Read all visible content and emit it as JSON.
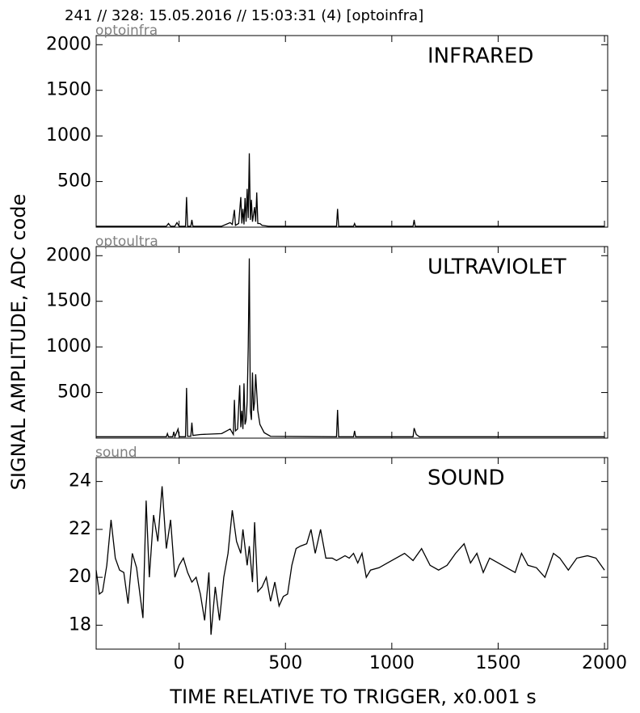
{
  "header": "241 // 328:   15.05.2016 // 15:03:31 (4)  [optoinfra]",
  "y_label": "SIGNAL AMPLITUDE,  ADC code",
  "x_label": "TIME RELATIVE TO TRIGGER,   x0.001 s",
  "chart_data": [
    {
      "type": "line",
      "source": "optoinfra",
      "title": "INFRARED",
      "color": "#000000",
      "xlim": [
        -390,
        2015
      ],
      "ylim": [
        0,
        2100
      ],
      "yticks": [
        500,
        1000,
        1500,
        2000
      ],
      "x": [
        -390,
        -60,
        -50,
        -40,
        -20,
        -10,
        0,
        30,
        35,
        40,
        55,
        60,
        65,
        200,
        240,
        250,
        260,
        265,
        280,
        290,
        295,
        300,
        305,
        310,
        315,
        320,
        325,
        330,
        335,
        340,
        345,
        355,
        360,
        365,
        370,
        380,
        390,
        420,
        740,
        745,
        750,
        820,
        825,
        830,
        1100,
        1105,
        1110,
        2000
      ],
      "values": [
        10,
        10,
        40,
        10,
        10,
        50,
        10,
        10,
        330,
        10,
        10,
        80,
        10,
        10,
        50,
        30,
        190,
        20,
        40,
        330,
        40,
        200,
        30,
        320,
        60,
        420,
        100,
        810,
        80,
        300,
        60,
        220,
        60,
        380,
        40,
        40,
        20,
        10,
        10,
        200,
        10,
        10,
        40,
        10,
        10,
        80,
        10,
        10
      ]
    },
    {
      "type": "line",
      "source": "optoultra",
      "title": "ULTRAVIOLET",
      "color": "#000000",
      "xlim": [
        -390,
        2015
      ],
      "ylim": [
        0,
        2100
      ],
      "yticks": [
        500,
        1000,
        1500,
        2000
      ],
      "x": [
        -390,
        -60,
        -55,
        -50,
        -30,
        -25,
        -20,
        -5,
        0,
        5,
        30,
        35,
        40,
        55,
        60,
        65,
        100,
        200,
        240,
        255,
        260,
        265,
        275,
        285,
        290,
        295,
        300,
        305,
        310,
        315,
        320,
        325,
        330,
        335,
        340,
        345,
        350,
        355,
        360,
        370,
        380,
        400,
        430,
        740,
        745,
        750,
        820,
        825,
        830,
        1100,
        1105,
        1115,
        1130,
        2000
      ],
      "values": [
        15,
        15,
        50,
        15,
        15,
        70,
        15,
        100,
        20,
        15,
        15,
        550,
        20,
        20,
        170,
        30,
        40,
        50,
        100,
        40,
        420,
        80,
        100,
        580,
        120,
        300,
        100,
        600,
        150,
        200,
        400,
        1000,
        1970,
        300,
        200,
        720,
        300,
        400,
        700,
        300,
        150,
        60,
        20,
        15,
        310,
        15,
        15,
        80,
        15,
        15,
        110,
        40,
        15,
        15
      ]
    },
    {
      "type": "line",
      "source": "sound",
      "title": "SOUND",
      "color": "#000000",
      "xlim": [
        -390,
        2015
      ],
      "ylim": [
        17,
        25
      ],
      "yticks": [
        18,
        20,
        22,
        24
      ],
      "xticks": [
        0,
        500,
        1000,
        1500,
        2000
      ],
      "x": [
        -390,
        -375,
        -360,
        -340,
        -320,
        -300,
        -280,
        -260,
        -240,
        -220,
        -200,
        -180,
        -170,
        -155,
        -140,
        -120,
        -100,
        -80,
        -60,
        -40,
        -20,
        0,
        20,
        40,
        60,
        80,
        100,
        120,
        140,
        150,
        170,
        190,
        210,
        230,
        250,
        270,
        290,
        300,
        320,
        330,
        345,
        355,
        370,
        390,
        410,
        430,
        450,
        470,
        490,
        510,
        530,
        550,
        570,
        600,
        620,
        640,
        665,
        690,
        720,
        740,
        760,
        780,
        800,
        820,
        840,
        860,
        880,
        900,
        940,
        980,
        1020,
        1060,
        1100,
        1140,
        1180,
        1220,
        1260,
        1300,
        1340,
        1370,
        1400,
        1430,
        1460,
        1500,
        1540,
        1580,
        1610,
        1640,
        1680,
        1720,
        1760,
        1790,
        1830,
        1870,
        1920,
        1960,
        2000
      ],
      "values": [
        20.3,
        19.3,
        19.4,
        20.5,
        22.4,
        20.8,
        20.3,
        20.2,
        18.9,
        21.0,
        20.4,
        19.0,
        18.3,
        23.2,
        20.0,
        22.6,
        21.5,
        23.8,
        21.2,
        22.4,
        20.0,
        20.5,
        20.8,
        20.2,
        19.8,
        20.0,
        19.3,
        18.2,
        20.2,
        17.6,
        19.6,
        18.2,
        20.0,
        21.0,
        22.8,
        21.5,
        21.0,
        22.0,
        20.5,
        21.3,
        19.8,
        22.3,
        19.4,
        19.6,
        20.0,
        19.0,
        19.8,
        18.8,
        19.2,
        19.3,
        20.5,
        21.2,
        21.3,
        21.4,
        22.0,
        21.0,
        22.0,
        20.8,
        20.8,
        20.7,
        20.8,
        20.9,
        20.8,
        21.0,
        20.6,
        21.0,
        20.0,
        20.3,
        20.4,
        20.6,
        20.8,
        21.0,
        20.7,
        21.2,
        20.5,
        20.3,
        20.5,
        21.0,
        21.4,
        20.6,
        21.0,
        20.2,
        20.8,
        20.6,
        20.4,
        20.2,
        21.0,
        20.5,
        20.4,
        20.0,
        21.0,
        20.8,
        20.3,
        20.8,
        20.9,
        20.8,
        20.3
      ]
    }
  ]
}
